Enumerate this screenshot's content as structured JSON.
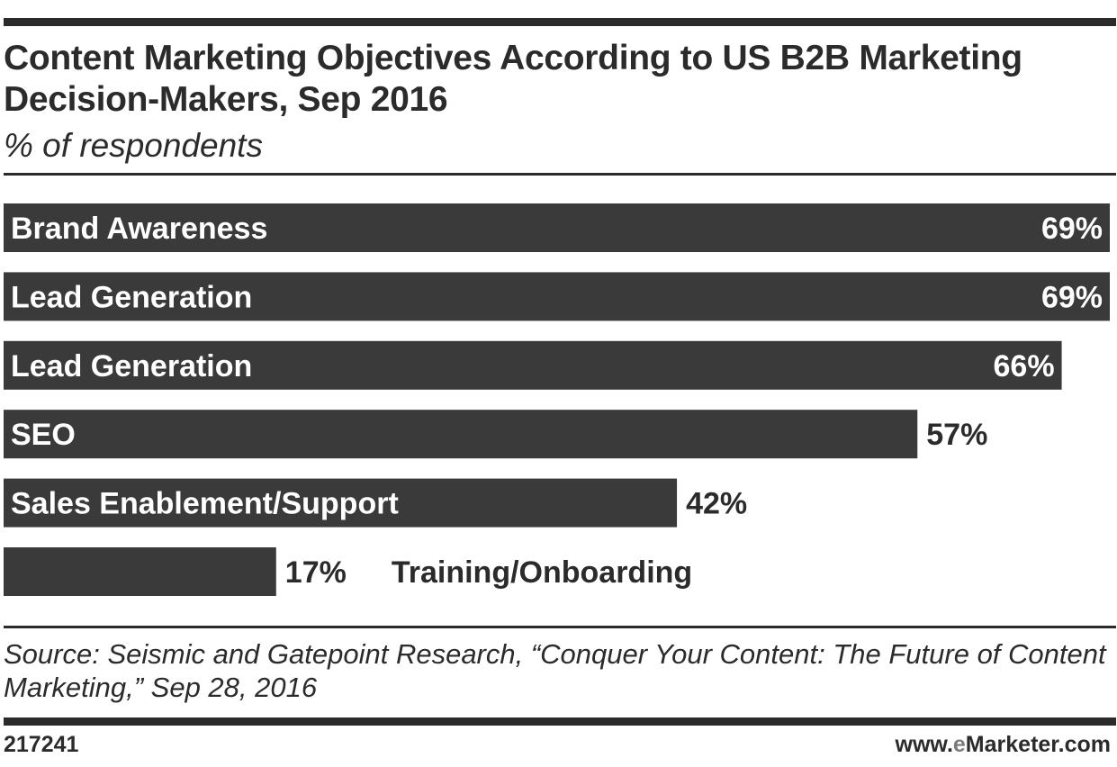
{
  "header": {
    "title": "Content Marketing Objectives According to US B2B Marketing Decision-Makers, Sep 2016",
    "subtitle": "% of respondents"
  },
  "chart_data": {
    "type": "bar",
    "orientation": "horizontal",
    "categories": [
      "Brand Awareness",
      "Lead Generation",
      "Lead Generation",
      "SEO",
      "Sales Enablement/Support",
      "Training/Onboarding"
    ],
    "values": [
      69,
      69,
      66,
      57,
      42,
      17
    ],
    "value_labels": [
      "69%",
      "69%",
      "66%",
      "57%",
      "42%",
      "17%"
    ],
    "title": "Content Marketing Objectives According to US B2B Marketing Decision-Makers, Sep 2016",
    "subtitle": "% of respondents",
    "xlim": [
      0,
      69
    ],
    "grid": false,
    "legend": "none",
    "colors": {
      "bar": "#3a3a3a",
      "label_on_bar": "#ffffff",
      "label_off_bar": "#2b2b2b"
    }
  },
  "footer": {
    "source": "Source: Seismic and Gatepoint Research, “Conquer Your Content: The Future of Content Marketing,” Sep 28, 2016",
    "chart_id": "217241",
    "site": "www.eMarketer.com",
    "site_prefix": "www.",
    "site_accent": "e",
    "site_suffix": "Marketer.com",
    "accent_color": "#7a7a7a"
  }
}
